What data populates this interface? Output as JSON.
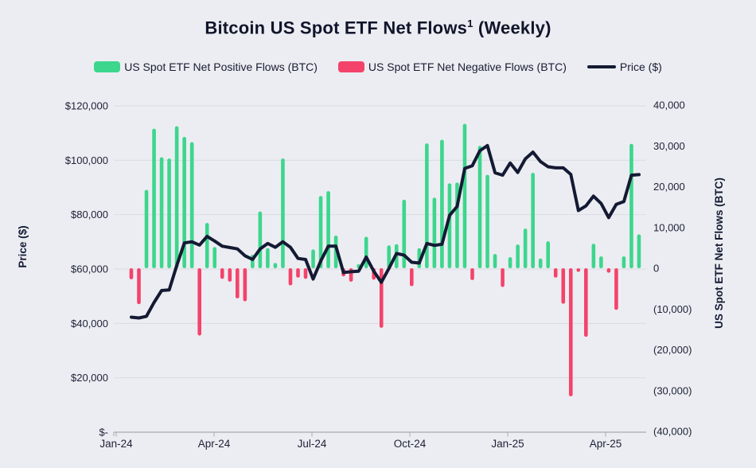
{
  "page": {
    "background": "#ECEDF2"
  },
  "title": {
    "text": "Bitcoin US Spot ETF Net Flows",
    "superscript": "1",
    "suffix": " (Weekly)"
  },
  "legend": [
    {
      "label": "US Spot ETF Net Positive Flows (BTC)",
      "color": "#3CD68D",
      "type": "swatch"
    },
    {
      "label": "US Spot ETF Net Negative Flows (BTC)",
      "color": "#F4436B",
      "type": "swatch"
    },
    {
      "label": "Price ($)",
      "color": "#141A33",
      "type": "line"
    }
  ],
  "left_axis": {
    "label": "Price ($)",
    "ticks": [
      "$120,000",
      "$100,000",
      "$80,000",
      "$60,000",
      "$40,000",
      "$20,000",
      "$-"
    ]
  },
  "right_axis": {
    "label": "US Spot ETF Net Flows (BTC)",
    "ticks": [
      "40,000",
      "30,000",
      "20,000",
      "10,000",
      "0",
      "(10,000)",
      "(20,000)",
      "(30,000)",
      "(40,000)"
    ]
  },
  "x_axis": {
    "ticks": [
      "Jan-24",
      "Apr-24",
      "Jul-24",
      "Oct-24",
      "Jan-25",
      "Apr-25"
    ]
  },
  "chart_data": {
    "type": "combo",
    "title": "Bitcoin US Spot ETF Net Flows (Weekly)",
    "grid": "horizontal",
    "legend_position": "top",
    "left_axis_label": "Price ($)",
    "right_axis_label": "US Spot ETF Net Flows (BTC)",
    "left_axis_range": [
      0,
      120000
    ],
    "right_axis_range": [
      -40000,
      40000
    ],
    "positive_color": "#3CD68D",
    "negative_color": "#F4436B",
    "line_color": "#141A33",
    "x_tick_labels": [
      "Jan-24",
      "Apr-24",
      "Jul-24",
      "Oct-24",
      "Jan-25",
      "Apr-25"
    ],
    "weeks": [
      "2024-01-15",
      "2024-01-22",
      "2024-01-29",
      "2024-02-05",
      "2024-02-12",
      "2024-02-19",
      "2024-02-26",
      "2024-03-04",
      "2024-03-11",
      "2024-03-18",
      "2024-03-25",
      "2024-04-01",
      "2024-04-08",
      "2024-04-15",
      "2024-04-22",
      "2024-04-29",
      "2024-05-06",
      "2024-05-13",
      "2024-05-20",
      "2024-05-27",
      "2024-06-03",
      "2024-06-10",
      "2024-06-17",
      "2024-06-24",
      "2024-07-01",
      "2024-07-08",
      "2024-07-15",
      "2024-07-22",
      "2024-07-29",
      "2024-08-05",
      "2024-08-12",
      "2024-08-19",
      "2024-08-26",
      "2024-09-02",
      "2024-09-09",
      "2024-09-16",
      "2024-09-23",
      "2024-09-30",
      "2024-10-07",
      "2024-10-14",
      "2024-10-21",
      "2024-10-28",
      "2024-11-04",
      "2024-11-11",
      "2024-11-18",
      "2024-11-25",
      "2024-12-02",
      "2024-12-09",
      "2024-12-16",
      "2024-12-23",
      "2024-12-30",
      "2025-01-06",
      "2025-01-13",
      "2025-01-20",
      "2025-01-27",
      "2025-02-03",
      "2025-02-10",
      "2025-02-17",
      "2025-02-24",
      "2025-03-03",
      "2025-03-10",
      "2025-03-17",
      "2025-03-24",
      "2025-03-31",
      "2025-04-07",
      "2025-04-14",
      "2025-04-21",
      "2025-04-28"
    ],
    "series": [
      {
        "name": "US Spot ETF Net Flows (BTC)",
        "type": "bar",
        "axis": "right",
        "values": [
          -2700,
          -8800,
          19200,
          34200,
          27200,
          26900,
          34800,
          32200,
          30900,
          -16500,
          11100,
          5200,
          -2600,
          -3300,
          -7400,
          -8100,
          3300,
          13900,
          4900,
          1300,
          26900,
          -4200,
          -2300,
          -2600,
          4600,
          17700,
          18900,
          8000,
          -2000,
          -3300,
          1000,
          7700,
          -2800,
          -14600,
          5600,
          5900,
          16800,
          -4400,
          4900,
          30600,
          17300,
          31500,
          20800,
          21000,
          35400,
          -2900,
          30000,
          22900,
          3500,
          -4600,
          2700,
          5800,
          9700,
          23400,
          2400,
          6600,
          -2300,
          -8700,
          -31400,
          -900,
          -16800,
          6000,
          2900,
          -1100,
          -10200,
          2900,
          30500,
          8300
        ]
      },
      {
        "name": "Price ($)",
        "type": "line",
        "axis": "left",
        "values": [
          42300,
          42000,
          42600,
          47700,
          52100,
          52300,
          61300,
          69600,
          70000,
          68800,
          72000,
          70300,
          68400,
          67900,
          67400,
          64900,
          63500,
          67400,
          69400,
          68000,
          70000,
          68000,
          63900,
          63500,
          56300,
          63000,
          68400,
          68400,
          58700,
          59000,
          59200,
          64400,
          59200,
          55100,
          60200,
          65700,
          65100,
          62500,
          62200,
          69400,
          68700,
          69100,
          79700,
          83000,
          97000,
          98000,
          103500,
          105400,
          95400,
          94500,
          99000,
          95500,
          100500,
          103000,
          99500,
          97600,
          97200,
          97200,
          94800,
          81500,
          83200,
          86800,
          84100,
          78900,
          83800,
          84800,
          94500,
          94700
        ]
      }
    ]
  }
}
